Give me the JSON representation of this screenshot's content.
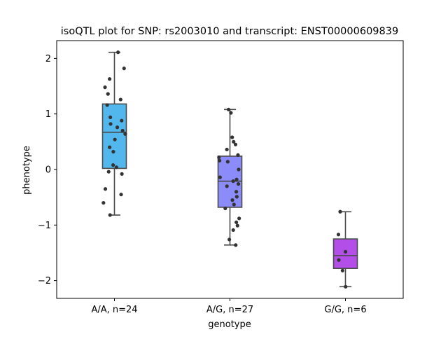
{
  "chart_data": {
    "type": "box",
    "title": "isoQTL plot for SNP: rs2003010 and transcript: ENST00000609839",
    "xlabel": "genotype",
    "ylabel": "phenotype",
    "ylim": [
      -2.32,
      2.32
    ],
    "yticks": [
      -2,
      -1,
      0,
      1,
      2
    ],
    "ytick_labels": [
      "−2",
      "−1",
      "0",
      "1",
      "2"
    ],
    "grid": false,
    "legend": "none",
    "categories": [
      "A/A, n=24",
      "A/G, n=27",
      "G/G, n=6"
    ],
    "colors": [
      "#52b7ec",
      "#8b8bf9",
      "#b44ee9"
    ],
    "box_edge_color": "#4a4a4a",
    "point_color": "#333333",
    "boxes": [
      {
        "q1": 0.02,
        "median": 0.67,
        "q3": 1.18,
        "whisker_low": -0.82,
        "whisker_high": 2.11
      },
      {
        "q1": -0.68,
        "median": -0.21,
        "q3": 0.24,
        "whisker_low": -1.36,
        "whisker_high": 1.08
      },
      {
        "q1": -1.78,
        "median": -1.55,
        "q3": -1.25,
        "whisker_low": -2.11,
        "whisker_high": -0.76
      }
    ],
    "points": [
      [
        2.11,
        1.82,
        1.63,
        1.48,
        1.36,
        1.26,
        1.16,
        0.94,
        0.88,
        0.82,
        0.76,
        0.7,
        0.64,
        0.54,
        0.4,
        0.32,
        0.08,
        0.04,
        -0.04,
        -0.08,
        -0.35,
        -0.45,
        -0.6,
        -0.82
      ],
      [
        1.08,
        1.02,
        0.58,
        0.5,
        0.45,
        0.36,
        0.26,
        0.22,
        0.16,
        0.14,
        0.0,
        -0.14,
        -0.18,
        -0.21,
        -0.26,
        -0.3,
        -0.4,
        -0.49,
        -0.55,
        -0.63,
        -0.7,
        -0.88,
        -0.95,
        -1.01,
        -1.09,
        -1.26,
        -1.36
      ],
      [
        -0.76,
        -1.17,
        -1.48,
        -1.63,
        -1.82,
        -2.11
      ]
    ]
  }
}
